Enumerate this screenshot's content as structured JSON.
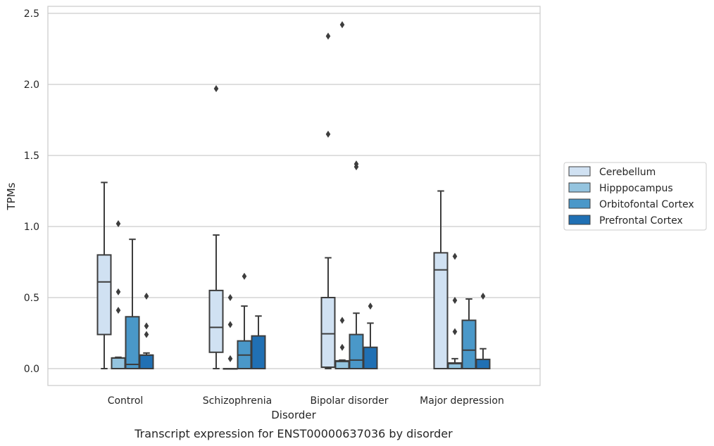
{
  "chart_data": {
    "type": "box",
    "title": "",
    "caption": "Transcript expression for ENST00000637036 by disorder",
    "xlabel": "Disorder",
    "ylabel": "TPMs",
    "ylim": [
      -0.12,
      2.55
    ],
    "yticks": [
      0.0,
      0.5,
      1.0,
      1.5,
      2.0,
      2.5
    ],
    "ytick_labels": [
      "0.0",
      "0.5",
      "1.0",
      "1.5",
      "2.0",
      "2.5"
    ],
    "grid": "horizontal",
    "legend_position": "right",
    "categories": [
      "Control",
      "Schizophrenia",
      "Bipolar disorder",
      "Major depression"
    ],
    "series": [
      {
        "name": "Cerebellum",
        "color": "#d0e1f2",
        "boxes": [
          {
            "whislo": 0.0,
            "q1": 0.24,
            "med": 0.61,
            "q3": 0.8,
            "whishi": 1.31,
            "fliers": []
          },
          {
            "whislo": 0.0,
            "q1": 0.115,
            "med": 0.29,
            "q3": 0.55,
            "whishi": 0.94,
            "fliers": [
              1.97
            ]
          },
          {
            "whislo": 0.0,
            "q1": 0.01,
            "med": 0.245,
            "q3": 0.5,
            "whishi": 0.78,
            "fliers": [
              1.65,
              2.34
            ]
          },
          {
            "whislo": 0.0,
            "q1": 0.0,
            "med": 0.695,
            "q3": 0.815,
            "whishi": 1.25,
            "fliers": []
          }
        ]
      },
      {
        "name": "Hipppocampus",
        "color": "#94c4df",
        "boxes": [
          {
            "whislo": 0.0,
            "q1": 0.0,
            "med": 0.075,
            "q3": 0.075,
            "whishi": 0.08,
            "fliers": [
              0.41,
              0.54,
              1.02
            ]
          },
          {
            "whislo": 0.0,
            "q1": 0.0,
            "med": 0.0,
            "q3": 0.0,
            "whishi": 0.0,
            "fliers": [
              0.07,
              0.31,
              0.5
            ]
          },
          {
            "whislo": 0.0,
            "q1": 0.0,
            "med": 0.05,
            "q3": 0.055,
            "whishi": 0.06,
            "fliers": [
              0.15,
              0.34,
              2.42
            ]
          },
          {
            "whislo": 0.0,
            "q1": 0.0,
            "med": 0.035,
            "q3": 0.04,
            "whishi": 0.07,
            "fliers": [
              0.26,
              0.48,
              0.79
            ]
          }
        ]
      },
      {
        "name": "Orbitofontal Cortex",
        "color": "#4a98c9",
        "boxes": [
          {
            "whislo": 0.0,
            "q1": 0.0,
            "med": 0.03,
            "q3": 0.365,
            "whishi": 0.91,
            "fliers": []
          },
          {
            "whislo": 0.0,
            "q1": 0.0,
            "med": 0.095,
            "q3": 0.195,
            "whishi": 0.44,
            "fliers": [
              0.65
            ]
          },
          {
            "whislo": 0.0,
            "q1": 0.0,
            "med": 0.06,
            "q3": 0.24,
            "whishi": 0.39,
            "fliers": [
              1.42,
              1.44
            ]
          },
          {
            "whislo": 0.0,
            "q1": 0.0,
            "med": 0.13,
            "q3": 0.34,
            "whishi": 0.49,
            "fliers": []
          }
        ]
      },
      {
        "name": "Prefrontal Cortex",
        "color": "#2070b4",
        "boxes": [
          {
            "whislo": 0.0,
            "q1": 0.0,
            "med": 0.095,
            "q3": 0.095,
            "whishi": 0.11,
            "fliers": [
              0.24,
              0.3,
              0.51
            ]
          },
          {
            "whislo": 0.0,
            "q1": 0.0,
            "med": 0.0,
            "q3": 0.23,
            "whishi": 0.37,
            "fliers": []
          },
          {
            "whislo": 0.0,
            "q1": 0.0,
            "med": 0.0,
            "q3": 0.15,
            "whishi": 0.32,
            "fliers": [
              0.44
            ]
          },
          {
            "whislo": 0.0,
            "q1": 0.0,
            "med": 0.0,
            "q3": 0.065,
            "whishi": 0.14,
            "fliers": [
              0.51
            ]
          }
        ]
      }
    ]
  }
}
